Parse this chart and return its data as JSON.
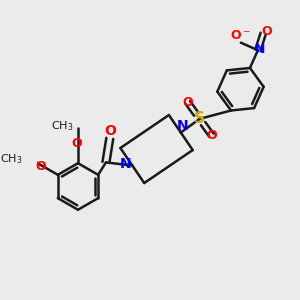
{
  "bg_color": "#ebebeb",
  "bond_color": "#1a1a1a",
  "N_color": "#0000ff",
  "O_color": "#ff0000",
  "S_color": "#ccaa00",
  "line_width": 1.8,
  "font_size": 9,
  "fig_width": 3.0,
  "fig_height": 3.0,
  "dpi": 100,
  "xlim": [
    -3.5,
    3.5
  ],
  "ylim": [
    -3.5,
    3.5
  ]
}
